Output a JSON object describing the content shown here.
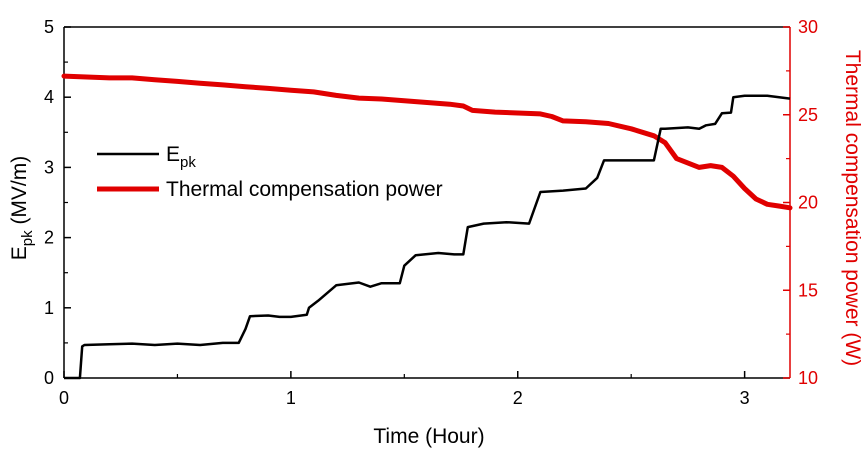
{
  "chart_data": {
    "type": "line",
    "xlabel": "Time (Hour)",
    "ylabel_main": "E",
    "ylabel_sub": "pk",
    "ylabel_unit": " (MV/m)",
    "y2label": "Thermal compensation power (W)",
    "xlim": [
      0,
      3.2
    ],
    "ylim": [
      0,
      5
    ],
    "y2lim": [
      10,
      30
    ],
    "x_ticks": [
      "0",
      "1",
      "2",
      "3"
    ],
    "y_ticks": [
      "0",
      "1",
      "2",
      "3",
      "4",
      "5"
    ],
    "y2_ticks": [
      "10",
      "15",
      "20",
      "25",
      "30"
    ],
    "grid": false,
    "legend_position": "center-left",
    "colors": {
      "epk": "#000000",
      "power": "#e00000"
    },
    "series": [
      {
        "name_main": "E",
        "name_sub": "pk",
        "axis": "left",
        "x": [
          0,
          0.07,
          0.08,
          0.09,
          0.2,
          0.3,
          0.4,
          0.5,
          0.6,
          0.7,
          0.77,
          0.8,
          0.82,
          0.9,
          0.95,
          1.0,
          1.07,
          1.08,
          1.12,
          1.2,
          1.3,
          1.35,
          1.4,
          1.48,
          1.5,
          1.55,
          1.65,
          1.72,
          1.76,
          1.78,
          1.85,
          1.95,
          2.05,
          2.1,
          2.2,
          2.3,
          2.35,
          2.38,
          2.45,
          2.55,
          2.6,
          2.63,
          2.65,
          2.75,
          2.8,
          2.83,
          2.87,
          2.9,
          2.94,
          2.95,
          3.0,
          3.1,
          3.2
        ],
        "values": [
          0,
          0,
          0.45,
          0.47,
          0.48,
          0.49,
          0.47,
          0.49,
          0.47,
          0.5,
          0.5,
          0.7,
          0.88,
          0.89,
          0.87,
          0.87,
          0.9,
          1.0,
          1.1,
          1.32,
          1.36,
          1.3,
          1.35,
          1.35,
          1.6,
          1.75,
          1.78,
          1.76,
          1.76,
          2.15,
          2.2,
          2.22,
          2.2,
          2.65,
          2.67,
          2.7,
          2.85,
          3.1,
          3.1,
          3.1,
          3.1,
          3.55,
          3.55,
          3.57,
          3.55,
          3.6,
          3.62,
          3.77,
          3.78,
          4.0,
          4.02,
          4.02,
          3.98
        ]
      },
      {
        "name": "Thermal compensation power",
        "axis": "right",
        "x": [
          0,
          0.1,
          0.2,
          0.3,
          0.4,
          0.5,
          0.6,
          0.7,
          0.8,
          0.9,
          1.0,
          1.1,
          1.2,
          1.3,
          1.4,
          1.5,
          1.6,
          1.7,
          1.76,
          1.8,
          1.9,
          2.0,
          2.1,
          2.15,
          2.2,
          2.3,
          2.4,
          2.5,
          2.6,
          2.65,
          2.7,
          2.8,
          2.85,
          2.9,
          2.95,
          3.0,
          3.05,
          3.1,
          3.15,
          3.2
        ],
        "values": [
          27.2,
          27.15,
          27.1,
          27.1,
          27.0,
          26.9,
          26.8,
          26.7,
          26.6,
          26.5,
          26.4,
          26.3,
          26.1,
          25.95,
          25.9,
          25.8,
          25.7,
          25.6,
          25.5,
          25.25,
          25.15,
          25.1,
          25.05,
          24.9,
          24.65,
          24.6,
          24.5,
          24.2,
          23.8,
          23.4,
          22.5,
          22.0,
          22.1,
          22.0,
          21.5,
          20.8,
          20.2,
          19.9,
          19.8,
          19.7
        ]
      }
    ]
  }
}
